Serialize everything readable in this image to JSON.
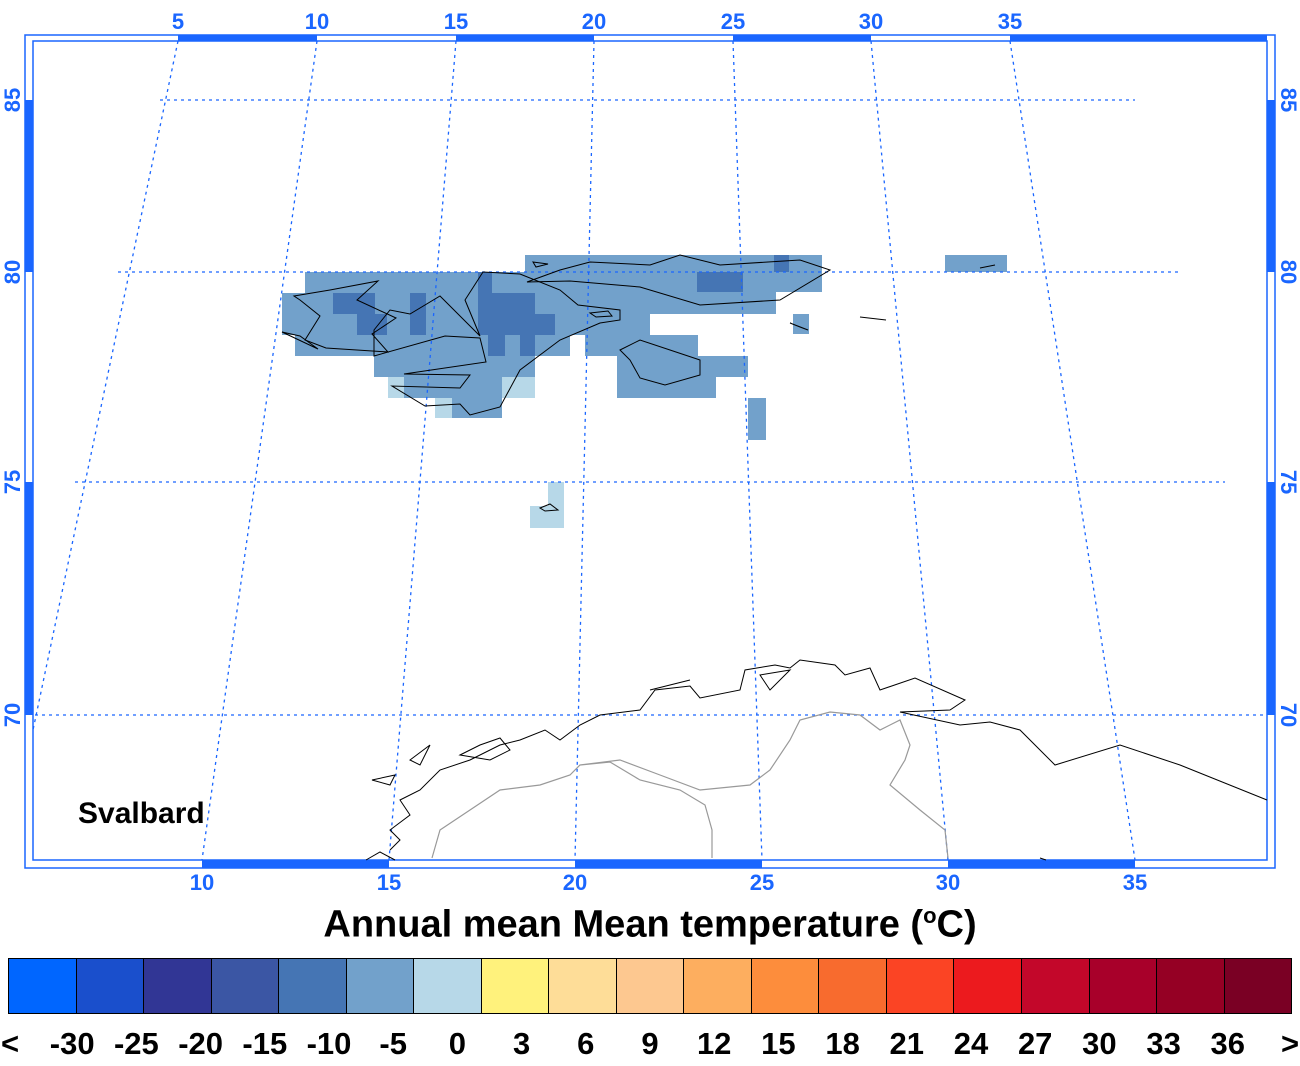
{
  "title": {
    "main": "Annual mean Mean temperature (",
    "unit_sup": "o",
    "unit": "C)"
  },
  "region_label": "Svalbard",
  "map": {
    "top_lon_labels": [
      "5",
      "10",
      "15",
      "20",
      "25",
      "30",
      "35"
    ],
    "bottom_lon_labels": [
      "10",
      "15",
      "20",
      "25",
      "30",
      "35"
    ],
    "lat_labels": [
      "85",
      "80",
      "75",
      "70"
    ],
    "frame_color": "#1a66ff"
  },
  "colorbar": {
    "colors": [
      "#0066ff",
      "#1a4fcc",
      "#313695",
      "#3b56a4",
      "#4575b4",
      "#72a1cb",
      "#b7d8e8",
      "#fff27c",
      "#fedd98",
      "#fdc890",
      "#fdae5f",
      "#fd8d3c",
      "#f86b2e",
      "#fb4424",
      "#ec1a1e",
      "#c3072a",
      "#a8002a",
      "#950024",
      "#7a0024"
    ],
    "tick_labels": [
      "<",
      "-30",
      "-25",
      "-20",
      "-15",
      "-10",
      "-5",
      "0",
      "3",
      "6",
      "9",
      "12",
      "15",
      "18",
      "21",
      "24",
      "27",
      "30",
      "33",
      "36",
      ">"
    ]
  }
}
